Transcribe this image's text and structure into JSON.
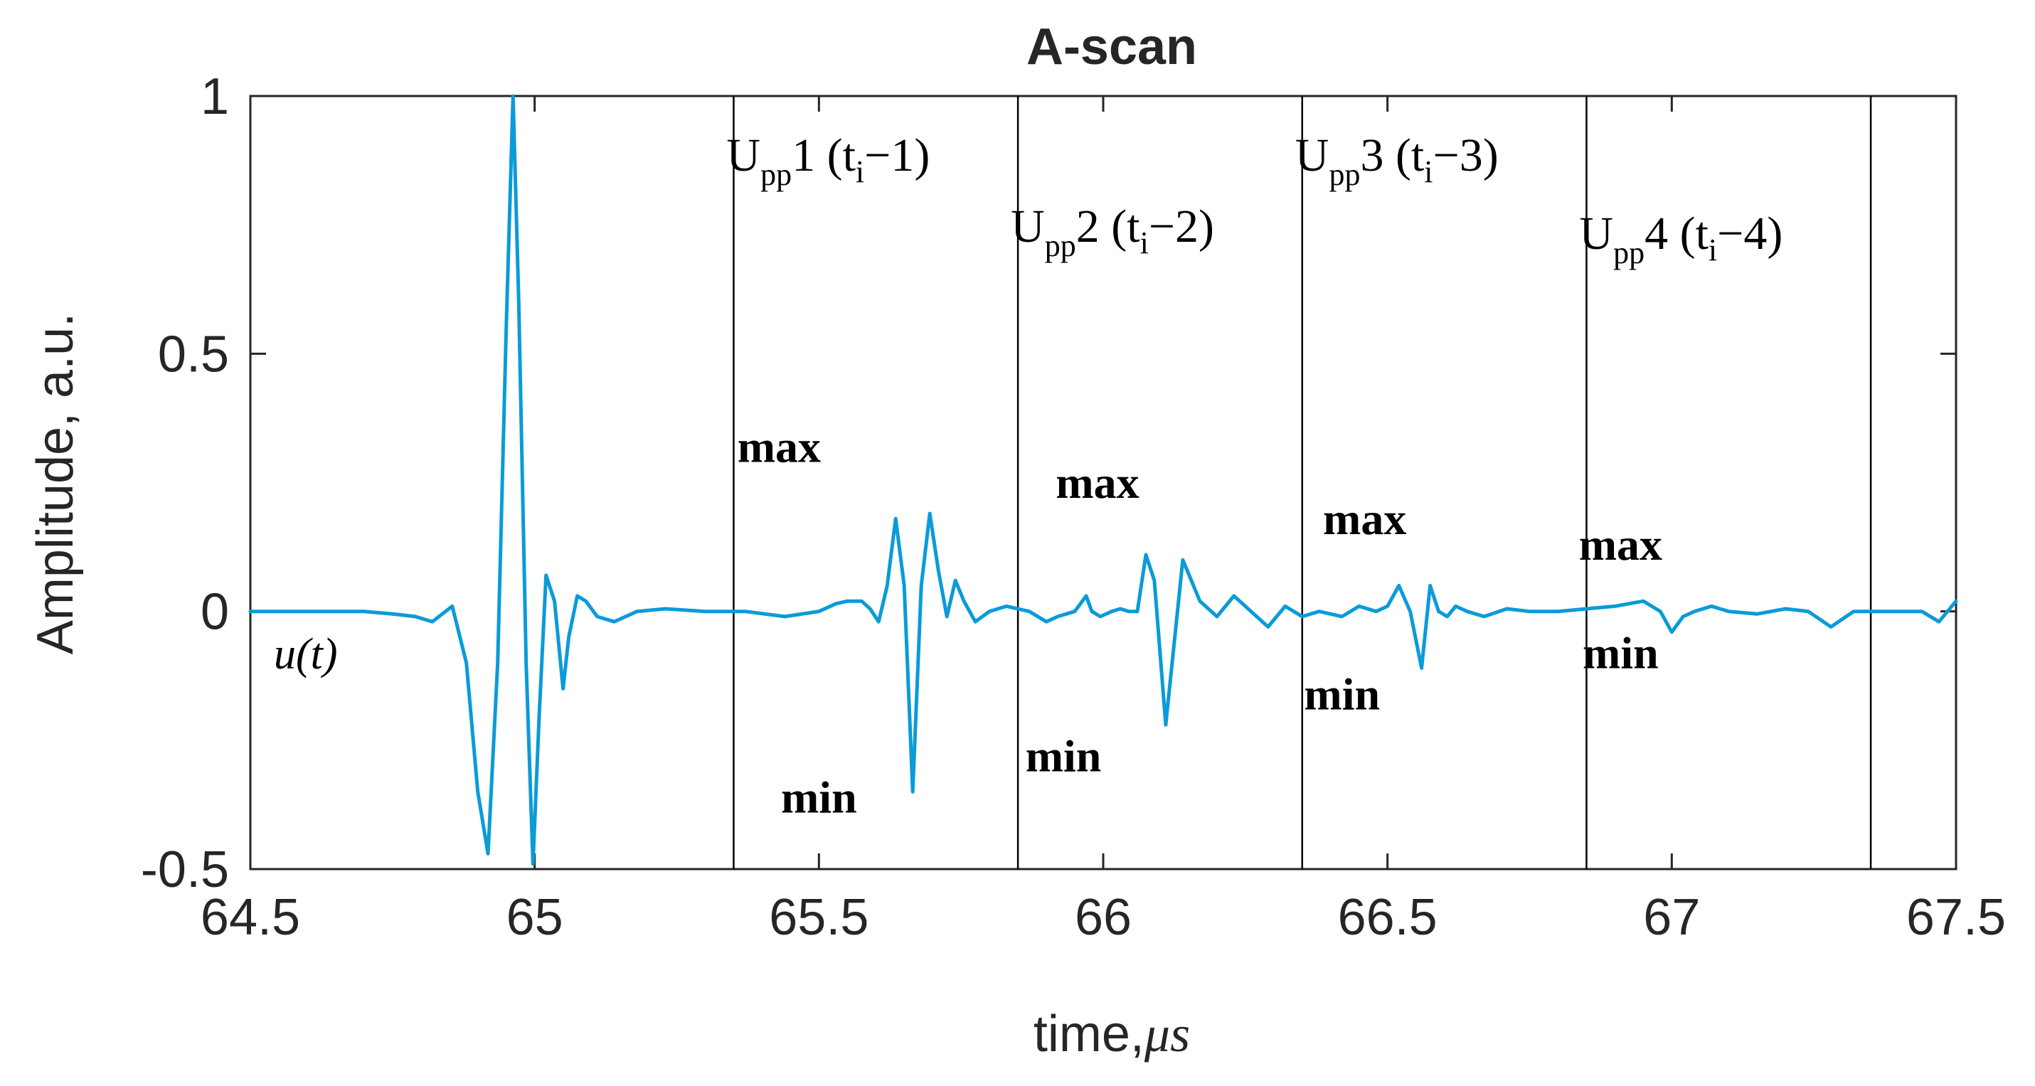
{
  "chart_data": {
    "type": "line",
    "title": "A-scan",
    "xlabel": "time,",
    "xlabel_unit": "μs",
    "ylabel": "Amplitude, a.u.",
    "xlim": [
      64.5,
      67.5
    ],
    "ylim": [
      -0.5,
      1
    ],
    "xticks": [
      64.5,
      65,
      65.5,
      66,
      66.5,
      67,
      67.5
    ],
    "xtick_labels": [
      "64.5",
      "65",
      "65.5",
      "66",
      "66.5",
      "67",
      "67.5"
    ],
    "yticks": [
      -0.5,
      0,
      0.5,
      1
    ],
    "ytick_labels": [
      "-0.5",
      "0",
      "0.5",
      "1"
    ],
    "grid": false,
    "line_color": "#0a9bd8",
    "signal_label": "u(t)",
    "series": [
      {
        "name": "",
        "x": [
          64.5,
          64.6,
          64.7,
          64.75,
          64.79,
          64.82,
          64.855,
          64.88,
          64.9,
          64.918,
          64.935,
          64.95,
          64.962,
          64.972,
          64.985,
          64.997,
          65.008,
          65.02,
          65.035,
          65.05,
          65.06,
          65.075,
          65.09,
          65.11,
          65.14,
          65.18,
          65.23,
          65.3,
          65.37,
          65.44,
          65.5,
          65.53,
          65.55,
          65.575,
          65.59,
          65.605,
          65.62,
          65.635,
          65.65,
          65.665,
          65.68,
          65.695,
          65.71,
          65.725,
          65.74,
          65.755,
          65.775,
          65.8,
          65.83,
          65.87,
          65.9,
          65.92,
          65.95,
          65.97,
          65.98,
          65.995,
          66.015,
          66.03,
          66.045,
          66.06,
          66.075,
          66.09,
          66.11,
          66.14,
          66.17,
          66.2,
          66.23,
          66.26,
          66.29,
          66.32,
          66.35,
          66.38,
          66.42,
          66.45,
          66.48,
          66.5,
          66.52,
          66.54,
          66.56,
          66.575,
          66.59,
          66.605,
          66.62,
          66.64,
          66.67,
          66.71,
          66.75,
          66.8,
          66.85,
          66.9,
          66.95,
          66.98,
          67.0,
          67.02,
          67.04,
          67.07,
          67.1,
          67.15,
          67.2,
          67.24,
          67.28,
          67.32,
          67.36,
          67.4,
          67.44,
          67.47,
          67.5
        ],
        "values": [
          0.0,
          0.0,
          0.0,
          -0.005,
          -0.01,
          -0.02,
          0.01,
          -0.1,
          -0.35,
          -0.47,
          -0.1,
          0.55,
          1.0,
          0.6,
          -0.1,
          -0.49,
          -0.2,
          0.07,
          0.02,
          -0.15,
          -0.05,
          0.03,
          0.02,
          -0.01,
          -0.02,
          0.0,
          0.005,
          0.0,
          0.0,
          -0.01,
          0.0,
          0.015,
          0.02,
          0.02,
          0.005,
          -0.02,
          0.05,
          0.18,
          0.05,
          -0.35,
          0.05,
          0.19,
          0.08,
          -0.01,
          0.06,
          0.02,
          -0.02,
          0.0,
          0.01,
          0.0,
          -0.02,
          -0.01,
          0.0,
          0.03,
          0.0,
          -0.01,
          0.0,
          0.005,
          0.0,
          0.0,
          0.11,
          0.06,
          -0.22,
          0.1,
          0.02,
          -0.01,
          0.03,
          0.0,
          -0.03,
          0.01,
          -0.01,
          0.0,
          -0.01,
          0.01,
          0.0,
          0.01,
          0.05,
          0.0,
          -0.11,
          0.05,
          0.0,
          -0.01,
          0.01,
          0.0,
          -0.01,
          0.005,
          0.0,
          0.0,
          0.005,
          0.01,
          0.02,
          0.0,
          -0.04,
          -0.01,
          0.0,
          0.01,
          0.0,
          -0.005,
          0.005,
          0.0,
          -0.03,
          0.0,
          0.0,
          0.0,
          0.0,
          -0.02,
          0.02
        ]
      }
    ],
    "gates": [
      65.35,
      65.85,
      66.35,
      66.85,
      67.35
    ],
    "gate_labels": [
      {
        "main": "U",
        "sub": "pp",
        "rest": "1 (t",
        "sub2": "i",
        "tail": "−1)"
      },
      {
        "main": "U",
        "sub": "pp",
        "rest": "2 (t",
        "sub2": "i",
        "tail": "−2)"
      },
      {
        "main": "U",
        "sub": "pp",
        "rest": "3 (t",
        "sub2": "i",
        "tail": "−3)"
      },
      {
        "main": "U",
        "sub": "pp",
        "rest": "4 (t",
        "sub2": "i",
        "tail": "−4)"
      }
    ],
    "annotations": [
      {
        "text": "max",
        "x": 65.43,
        "y": 0.29
      },
      {
        "text": "min",
        "x": 65.5,
        "y": -0.39
      },
      {
        "text": "max",
        "x": 65.99,
        "y": 0.22
      },
      {
        "text": "min",
        "x": 65.93,
        "y": -0.31
      },
      {
        "text": "max",
        "x": 66.46,
        "y": 0.15
      },
      {
        "text": "min",
        "x": 66.42,
        "y": -0.19
      },
      {
        "text": "max",
        "x": 66.91,
        "y": 0.1
      },
      {
        "text": "min",
        "x": 66.91,
        "y": -0.11
      }
    ]
  }
}
